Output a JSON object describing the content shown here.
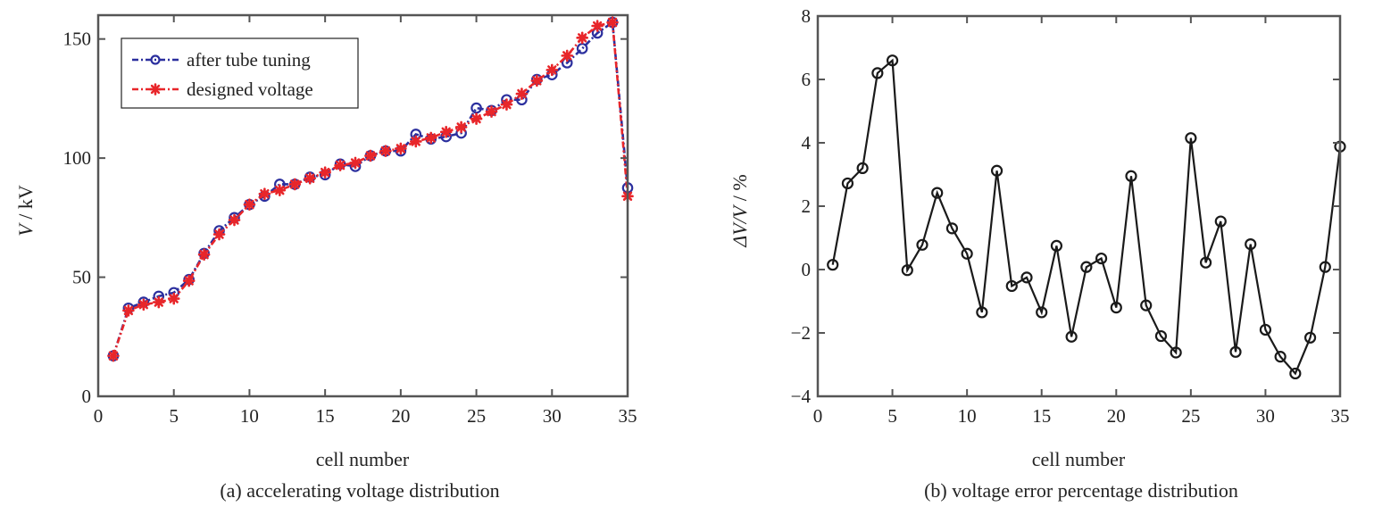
{
  "chart_data": [
    {
      "id": "a",
      "type": "line",
      "title": "",
      "caption": "(a) accelerating voltage distribution",
      "xlabel": "cell number",
      "ylabel_italic": "V",
      "ylabel_rest": " / kV",
      "xlim": [
        0,
        35
      ],
      "ylim": [
        0,
        160
      ],
      "xticks": [
        0,
        5,
        10,
        15,
        20,
        25,
        30,
        35
      ],
      "yticks": [
        0,
        50,
        100,
        150
      ],
      "grid": false,
      "legend_position": "top-left",
      "x": [
        1,
        2,
        3,
        4,
        5,
        6,
        7,
        8,
        9,
        10,
        11,
        12,
        13,
        14,
        15,
        16,
        17,
        18,
        19,
        20,
        21,
        22,
        23,
        24,
        25,
        26,
        27,
        28,
        29,
        30,
        31,
        32,
        33,
        34,
        35
      ],
      "series": [
        {
          "name": "after tube tuning",
          "color": "#2b2f9e",
          "marker": "circle",
          "line_style": "dash-dot",
          "values": [
            17,
            37,
            39.5,
            42,
            43.5,
            49,
            60,
            69.5,
            75,
            80.5,
            84,
            89,
            89,
            92,
            93,
            97.5,
            96.5,
            101,
            103,
            103,
            110,
            108,
            109,
            110.5,
            121,
            120,
            124.5,
            124.5,
            133,
            135,
            140,
            146,
            152.5,
            157,
            87.5
          ]
        },
        {
          "name": "designed voltage",
          "color": "#e8262a",
          "marker": "asterisk",
          "line_style": "dash-dot",
          "values": [
            17,
            36,
            38.5,
            39.5,
            41,
            48.5,
            59.5,
            68,
            74,
            80.5,
            85,
            86.5,
            89,
            91.5,
            94,
            97,
            98,
            101,
            103,
            104,
            107,
            108.5,
            111,
            113,
            116.5,
            119.5,
            122.5,
            127,
            132.5,
            137,
            143,
            150.5,
            155.5,
            157,
            84
          ]
        }
      ]
    },
    {
      "id": "b",
      "type": "line",
      "title": "",
      "caption": "(b) voltage error percentage distribution",
      "xlabel": "cell number",
      "ylabel_italic": "ΔV/V",
      "ylabel_rest": " / %",
      "xlim": [
        0,
        35
      ],
      "ylim": [
        -4,
        8
      ],
      "xticks": [
        0,
        5,
        10,
        15,
        20,
        25,
        30,
        35
      ],
      "yticks": [
        -4,
        -2,
        0,
        2,
        4,
        6,
        8
      ],
      "ytick_labels": [
        "−4",
        "−2",
        "0",
        "2",
        "4",
        "6",
        "8"
      ],
      "grid": false,
      "x": [
        1,
        2,
        3,
        4,
        5,
        6,
        7,
        8,
        9,
        10,
        11,
        12,
        13,
        14,
        15,
        16,
        17,
        18,
        19,
        20,
        21,
        22,
        23,
        24,
        25,
        26,
        27,
        28,
        29,
        30,
        31,
        32,
        33,
        34,
        35
      ],
      "series": [
        {
          "name": "voltage error",
          "color": "#1a1a1a",
          "marker": "circle",
          "line_style": "solid",
          "values": [
            0.15,
            2.72,
            3.2,
            6.2,
            6.6,
            -0.02,
            0.78,
            2.42,
            1.3,
            0.5,
            -1.35,
            3.12,
            -0.52,
            -0.25,
            -1.35,
            0.75,
            -2.12,
            0.08,
            0.35,
            -1.2,
            2.95,
            -1.13,
            -2.1,
            -2.62,
            4.15,
            0.22,
            1.52,
            -2.6,
            0.8,
            -1.9,
            -2.75,
            -3.28,
            -2.15,
            0.08,
            3.88
          ]
        }
      ]
    }
  ]
}
